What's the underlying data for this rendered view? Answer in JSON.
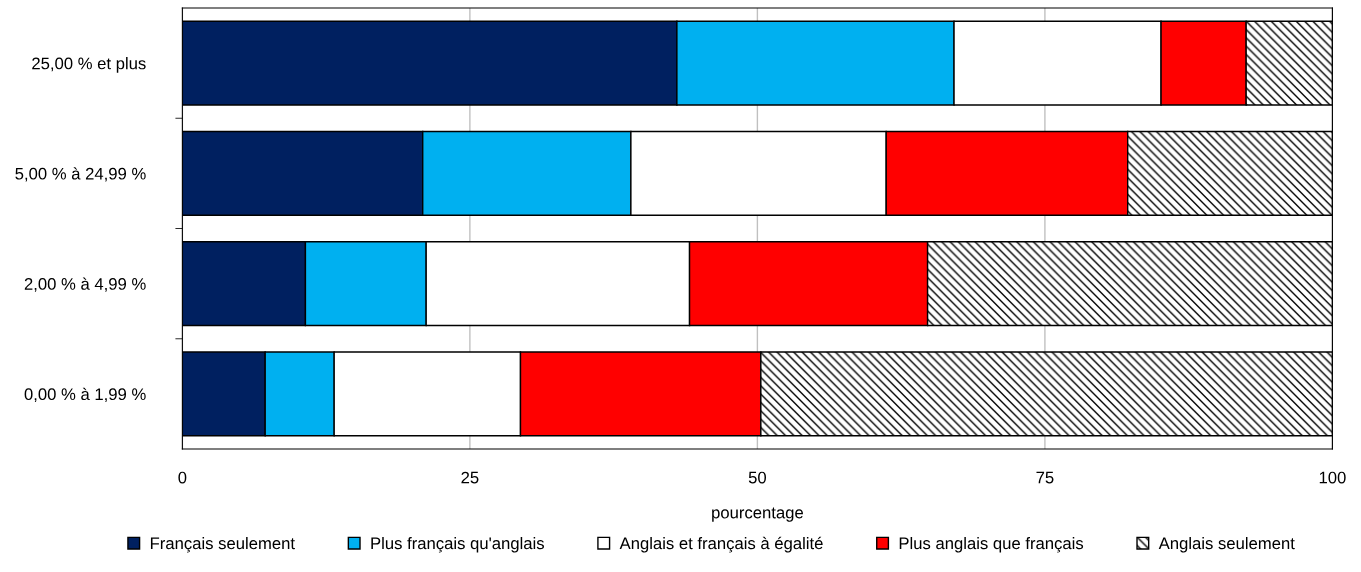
{
  "chart_data": {
    "type": "bar",
    "orientation": "horizontal",
    "stacked": true,
    "categories": [
      "25,00 % et plus",
      "5,00 % à 24,99 %",
      "2,00 % à 4,99 %",
      "0,00 % à 1,99 %"
    ],
    "series": [
      {
        "name": "Français seulement",
        "color": "#002060",
        "values": [
          43.0,
          20.9,
          10.7,
          7.2
        ]
      },
      {
        "name": "Plus français qu'anglais",
        "color": "#00b0f0",
        "values": [
          24.1,
          18.1,
          10.5,
          6.0
        ]
      },
      {
        "name": "Anglais et français à égalité",
        "color": "#ffffff",
        "values": [
          18.0,
          22.2,
          22.9,
          16.2
        ]
      },
      {
        "name": "Plus anglais que français",
        "color": "#ff0000",
        "values": [
          7.4,
          21.0,
          20.7,
          20.9
        ]
      },
      {
        "name": "Anglais seulement",
        "color": "#000000",
        "values": [
          7.5,
          17.8,
          35.2,
          49.7
        ]
      }
    ],
    "xlabel": "pourcentage",
    "xlim": [
      0,
      100
    ],
    "xticks": [
      0,
      25,
      50,
      75,
      100
    ],
    "grid": "x",
    "legend": "bottom"
  }
}
